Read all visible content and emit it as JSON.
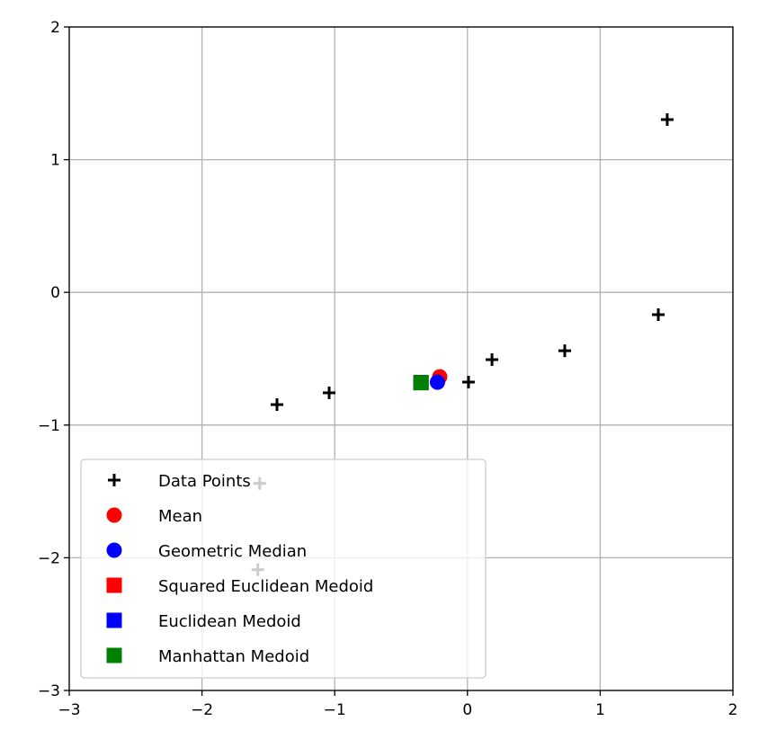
{
  "chart_data": {
    "type": "scatter",
    "title": "",
    "xlabel": "",
    "ylabel": "",
    "xlim": [
      -3,
      2
    ],
    "ylim": [
      -3,
      2
    ],
    "grid": true,
    "xticks": [
      "−3",
      "−2",
      "−1",
      "0",
      "1",
      "2"
    ],
    "xtick_values": [
      -3,
      -2,
      -1,
      0,
      1,
      2
    ],
    "yticks": [
      "−3",
      "−2",
      "−1",
      "0",
      "1",
      "2"
    ],
    "ytick_values": [
      -3,
      -2,
      -1,
      0,
      1,
      2
    ],
    "legend_position": "lower-left",
    "series": [
      {
        "name": "Data Points",
        "marker": "plus",
        "color": "#000000",
        "x": [
          1.505,
          1.438,
          0.733,
          0.185,
          0.008,
          -1.042,
          -1.435,
          -1.565,
          -1.579
        ],
        "y": [
          1.302,
          -0.168,
          -0.44,
          -0.507,
          -0.676,
          -0.757,
          -0.846,
          -1.44,
          -2.09
        ]
      },
      {
        "name": "Mean",
        "marker": "circle",
        "color": "#ff0000",
        "x": [
          -0.209
        ],
        "y": [
          -0.636
        ]
      },
      {
        "name": "Geometric Median",
        "marker": "circle",
        "color": "#0000ff",
        "x": [
          -0.226
        ],
        "y": [
          -0.677
        ]
      },
      {
        "name": "Squared Euclidean Medoid",
        "marker": "square",
        "color": "#ff0000",
        "x": [
          -0.35
        ],
        "y": [
          -0.68
        ]
      },
      {
        "name": "Euclidean Medoid",
        "marker": "square",
        "color": "#0000ff",
        "x": [
          -0.35
        ],
        "y": [
          -0.68
        ]
      },
      {
        "name": "Manhattan Medoid",
        "marker": "square",
        "color": "#008000",
        "x": [
          -0.35
        ],
        "y": [
          -0.68
        ]
      }
    ]
  }
}
